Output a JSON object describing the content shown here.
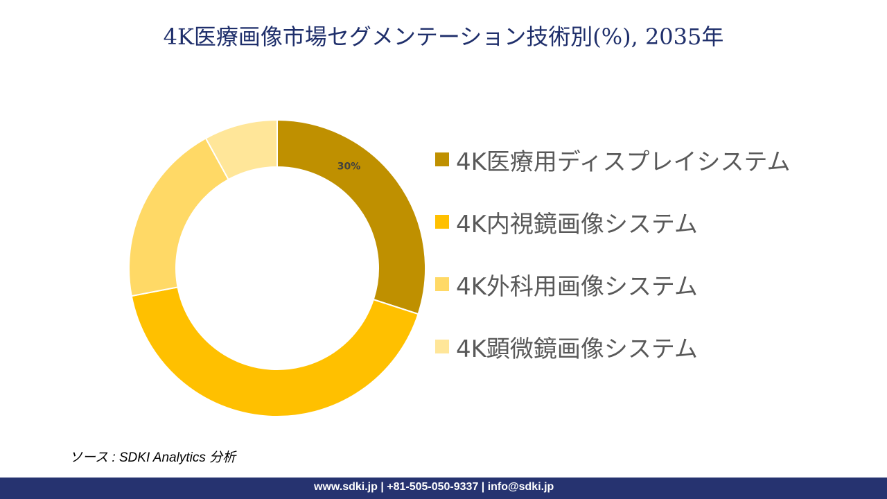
{
  "title": "4K医療画像市場セグメンテーション技術別(%), 2035年",
  "chart_data": {
    "type": "pie",
    "donut": true,
    "title": "4K医療画像市場セグメンテーション技術別(%), 2035年",
    "legend_placement": "right",
    "categories": [
      "4K医療用ディスプレイシステム",
      "4K内視鏡画像システム",
      "4K外科用画像システム",
      "4K顕微鏡画像システム"
    ],
    "values": [
      30,
      42,
      20,
      8
    ],
    "colors": [
      "#BF9000",
      "#FFC000",
      "#FFD966",
      "#FFE699"
    ],
    "data_labels": [
      "30%",
      "",
      "",
      ""
    ]
  },
  "source": "ソース : SDKI Analytics  分析",
  "footer": "www.sdki.jp | +81-505-050-9337 | info@sdki.jp"
}
